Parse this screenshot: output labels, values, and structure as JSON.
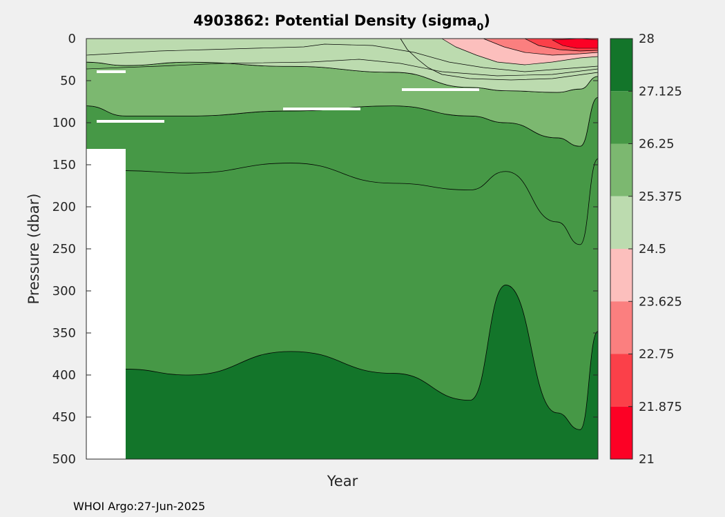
{
  "chart_data": {
    "type": "contour",
    "title": "4903862: Potential Density (sigma",
    "title_subscript": "0",
    "title_suffix": ")",
    "xlabel": "Year",
    "ylabel": "Pressure (dbar)",
    "ylim": [
      0,
      500
    ],
    "y_reversed": true,
    "yticks": [
      0,
      50,
      100,
      150,
      200,
      250,
      300,
      350,
      400,
      450,
      500
    ],
    "x_tick_labels": [],
    "colorbar": {
      "range": [
        21,
        28
      ],
      "ticks": [
        "28",
        "27.125",
        "26.25",
        "25.375",
        "24.5",
        "23.625",
        "22.75",
        "21.875",
        "21"
      ],
      "levels": [
        {
          "from": 27.125,
          "to": 28,
          "color": "#13752a"
        },
        {
          "from": 26.25,
          "to": 27.125,
          "color": "#469846"
        },
        {
          "from": 25.375,
          "to": 26.25,
          "color": "#7cb870"
        },
        {
          "from": 24.5,
          "to": 25.375,
          "color": "#bcdbaf"
        },
        {
          "from": 23.625,
          "to": 24.5,
          "color": "#fcbfbd"
        },
        {
          "from": 22.75,
          "to": 23.625,
          "color": "#fb7f7f"
        },
        {
          "from": 21.875,
          "to": 22.75,
          "color": "#fb4049"
        },
        {
          "from": 21,
          "to": 21.875,
          "color": "#fc0125"
        }
      ]
    },
    "isopycnal_depths": {
      "x_fraction": [
        0,
        0.077,
        0.2,
        0.4,
        0.6,
        0.75,
        0.82,
        0.92,
        0.965,
        1
      ],
      "d_27_125": [
        null,
        393,
        400,
        372,
        398,
        430,
        293,
        445,
        465,
        348
      ],
      "d_26_25": [
        null,
        157,
        160,
        148,
        172,
        180,
        158,
        218,
        245,
        143
      ],
      "d_25_375": [
        80,
        92,
        92,
        86,
        80,
        92,
        100,
        118,
        128,
        70
      ],
      "d_24_5": [
        28,
        32,
        28,
        33,
        40,
        58,
        62,
        64,
        60,
        45
      ]
    }
  },
  "footer": "WHOI Argo:27-Jun-2025"
}
